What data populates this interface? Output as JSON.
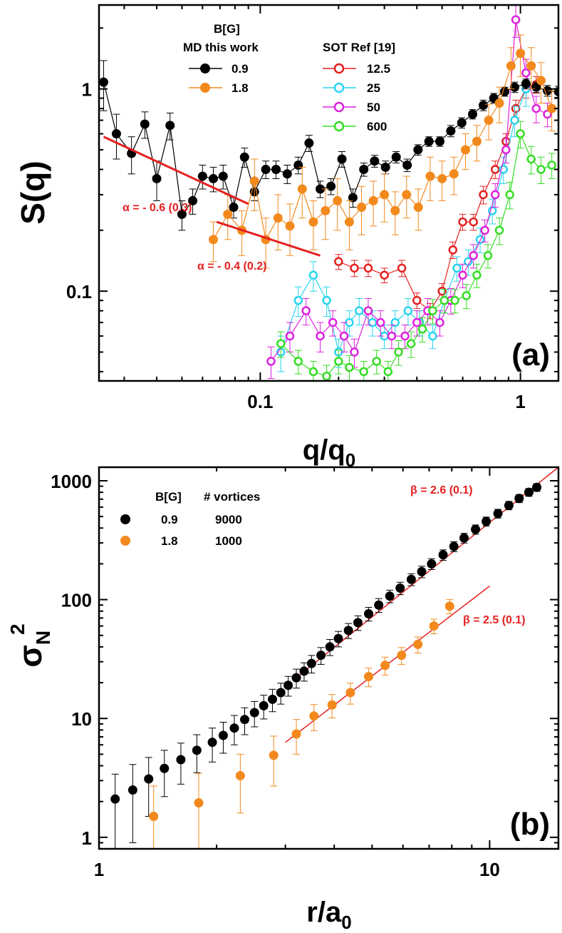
{
  "chart_data": [
    {
      "type": "scatter",
      "panel_label": "(a)",
      "xlabel_main": "q/q",
      "xlabel_sub": "0",
      "ylabel": "S(q)",
      "xscale": "log",
      "yscale": "log",
      "xlim": [
        0.024,
        1.4
      ],
      "ylim": [
        0.036,
        2.6
      ],
      "xticks": [
        {
          "v": 0.1,
          "label": "0.1"
        },
        {
          "v": 1,
          "label": "1"
        }
      ],
      "yticks": [
        {
          "v": 0.1,
          "label": "0.1"
        },
        {
          "v": 1,
          "label": "1"
        }
      ],
      "legend": {
        "title": "B[G]",
        "md_header": "MD this work",
        "sot_header": "SOT Ref [19]"
      },
      "series": [
        {
          "name": "0.9",
          "group": "md",
          "color": "#000000",
          "filled": true,
          "x": [
            0.025,
            0.028,
            0.032,
            0.036,
            0.04,
            0.045,
            0.05,
            0.055,
            0.06,
            0.066,
            0.072,
            0.079,
            0.087,
            0.095,
            0.105,
            0.115,
            0.127,
            0.14,
            0.154,
            0.17,
            0.187,
            0.206,
            0.227,
            0.25,
            0.275,
            0.303,
            0.333,
            0.367,
            0.404,
            0.445,
            0.49,
            0.54,
            0.595,
            0.655,
            0.72,
            0.79,
            0.87,
            0.95,
            1.05,
            1.15,
            1.27,
            1.4
          ],
          "y": [
            1.08,
            0.6,
            0.48,
            0.67,
            0.36,
            0.66,
            0.24,
            0.28,
            0.37,
            0.36,
            0.37,
            0.26,
            0.46,
            0.31,
            0.4,
            0.4,
            0.38,
            0.42,
            0.54,
            0.32,
            0.33,
            0.45,
            0.29,
            0.4,
            0.44,
            0.41,
            0.46,
            0.42,
            0.5,
            0.55,
            0.55,
            0.62,
            0.68,
            0.75,
            0.83,
            0.9,
            0.97,
            1.02,
            1.06,
            1.02,
            0.98,
            0.97
          ],
          "err": [
            0.3,
            0.15,
            0.1,
            0.1,
            0.08,
            0.1,
            0.04,
            0.04,
            0.05,
            0.05,
            0.05,
            0.03,
            0.05,
            0.03,
            0.04,
            0.04,
            0.04,
            0.04,
            0.05,
            0.03,
            0.03,
            0.04,
            0.03,
            0.03,
            0.03,
            0.03,
            0.03,
            0.03,
            0.03,
            0.03,
            0.03,
            0.04,
            0.04,
            0.04,
            0.05,
            0.05,
            0.05,
            0.06,
            0.06,
            0.06,
            0.06,
            0.06
          ]
        },
        {
          "name": "1.8",
          "group": "md",
          "color": "#f2891d",
          "filled": true,
          "x": [
            0.066,
            0.075,
            0.085,
            0.095,
            0.105,
            0.117,
            0.13,
            0.145,
            0.16,
            0.178,
            0.198,
            0.22,
            0.245,
            0.272,
            0.3,
            0.33,
            0.365,
            0.405,
            0.45,
            0.5,
            0.555,
            0.615,
            0.68,
            0.755,
            0.83,
            0.92,
            1.0,
            1.1,
            1.2,
            1.32
          ],
          "y": [
            0.18,
            0.24,
            0.2,
            0.35,
            0.18,
            0.23,
            0.21,
            0.32,
            0.22,
            0.25,
            0.28,
            0.22,
            0.26,
            0.28,
            0.3,
            0.25,
            0.3,
            0.26,
            0.37,
            0.36,
            0.38,
            0.5,
            0.55,
            0.7,
            0.85,
            1.3,
            1.5,
            1.3,
            1.1,
            0.8
          ],
          "err": [
            0.04,
            0.06,
            0.05,
            0.1,
            0.05,
            0.07,
            0.06,
            0.09,
            0.06,
            0.07,
            0.08,
            0.06,
            0.07,
            0.07,
            0.08,
            0.06,
            0.07,
            0.06,
            0.09,
            0.08,
            0.08,
            0.1,
            0.11,
            0.14,
            0.17,
            0.3,
            0.35,
            0.3,
            0.25,
            0.18
          ]
        },
        {
          "name": "12.5",
          "group": "sot",
          "color": "#e52020",
          "filled": false,
          "x": [
            0.2,
            0.23,
            0.26,
            0.3,
            0.35,
            0.4,
            0.45,
            0.5,
            0.55,
            0.6,
            0.66,
            0.72,
            0.8,
            0.88,
            0.96,
            1.05,
            1.15
          ],
          "y": [
            0.14,
            0.13,
            0.13,
            0.12,
            0.13,
            0.09,
            0.08,
            0.1,
            0.16,
            0.22,
            0.22,
            0.3,
            0.4,
            0.55,
            0.8,
            1.0,
            1.05
          ],
          "err": [
            0.012,
            0.012,
            0.012,
            0.01,
            0.012,
            0.008,
            0.007,
            0.009,
            0.015,
            0.02,
            0.02,
            0.03,
            0.04,
            0.05,
            0.08,
            0.1,
            0.1
          ]
        },
        {
          "name": "25",
          "group": "sot",
          "color": "#2ad4ee",
          "filled": false,
          "x": [
            0.12,
            0.14,
            0.16,
            0.18,
            0.2,
            0.22,
            0.24,
            0.27,
            0.3,
            0.33,
            0.37,
            0.41,
            0.46,
            0.51,
            0.57,
            0.63,
            0.7,
            0.78,
            0.86,
            0.95,
            1.05
          ],
          "y": [
            0.05,
            0.09,
            0.12,
            0.09,
            0.05,
            0.07,
            0.08,
            0.07,
            0.06,
            0.07,
            0.08,
            0.07,
            0.06,
            0.09,
            0.13,
            0.14,
            0.18,
            0.25,
            0.4,
            0.7,
            1.0
          ],
          "err": [
            0.01,
            0.015,
            0.02,
            0.015,
            0.008,
            0.01,
            0.012,
            0.01,
            0.008,
            0.01,
            0.012,
            0.01,
            0.008,
            0.012,
            0.018,
            0.02,
            0.025,
            0.035,
            0.06,
            0.12,
            0.18
          ]
        },
        {
          "name": "50",
          "group": "sot",
          "color": "#dd22dd",
          "filled": false,
          "x": [
            0.11,
            0.13,
            0.15,
            0.17,
            0.19,
            0.21,
            0.23,
            0.26,
            0.29,
            0.32,
            0.36,
            0.4,
            0.44,
            0.49,
            0.54,
            0.6,
            0.66,
            0.73,
            0.8,
            0.88,
            0.96,
            1.05,
            1.15,
            1.27
          ],
          "y": [
            0.045,
            0.06,
            0.08,
            0.06,
            0.07,
            0.06,
            0.05,
            0.08,
            0.07,
            0.06,
            0.06,
            0.07,
            0.08,
            0.07,
            0.09,
            0.12,
            0.15,
            0.2,
            0.3,
            0.5,
            2.2,
            1.2,
            0.8,
            0.75
          ],
          "err": [
            0.008,
            0.01,
            0.012,
            0.01,
            0.01,
            0.01,
            0.008,
            0.012,
            0.01,
            0.008,
            0.008,
            0.01,
            0.012,
            0.01,
            0.013,
            0.016,
            0.02,
            0.025,
            0.04,
            0.07,
            0.4,
            0.2,
            0.12,
            0.1
          ]
        },
        {
          "name": "600",
          "group": "sot",
          "color": "#33dd22",
          "filled": false,
          "x": [
            0.12,
            0.14,
            0.16,
            0.18,
            0.2,
            0.22,
            0.25,
            0.28,
            0.31,
            0.34,
            0.38,
            0.42,
            0.46,
            0.51,
            0.56,
            0.62,
            0.68,
            0.75,
            0.83,
            0.91,
            1.0,
            1.1,
            1.2,
            1.32
          ],
          "y": [
            0.055,
            0.045,
            0.04,
            0.038,
            0.045,
            0.042,
            0.04,
            0.045,
            0.04,
            0.05,
            0.055,
            0.065,
            0.08,
            0.09,
            0.09,
            0.095,
            0.12,
            0.15,
            0.2,
            0.3,
            0.6,
            0.45,
            0.4,
            0.42
          ],
          "err": [
            0.008,
            0.006,
            0.005,
            0.005,
            0.006,
            0.006,
            0.005,
            0.006,
            0.005,
            0.007,
            0.008,
            0.009,
            0.011,
            0.012,
            0.012,
            0.013,
            0.016,
            0.02,
            0.03,
            0.045,
            0.09,
            0.07,
            0.06,
            0.06
          ]
        }
      ],
      "fits": [
        {
          "x": [
            0.025,
            0.09
          ],
          "y": [
            0.58,
            0.27
          ],
          "label": "α = - 0.6 (0.3)",
          "color": "#e52020"
        },
        {
          "x": [
            0.068,
            0.17
          ],
          "y": [
            0.22,
            0.15
          ],
          "label": "α = - 0.4 (0.2)",
          "color": "#e52020"
        }
      ]
    },
    {
      "type": "scatter",
      "panel_label": "(b)",
      "xlabel_main": "r/a",
      "xlabel_sub": "0",
      "ylabel_main": "σ",
      "ylabel_sub": "N",
      "ylabel_sup": "2",
      "xscale": "log",
      "yscale": "log",
      "xlim": [
        1,
        15
      ],
      "ylim": [
        0.8,
        1300
      ],
      "xticks": [
        {
          "v": 1,
          "label": "1"
        },
        {
          "v": 10,
          "label": "10"
        }
      ],
      "yticks": [
        {
          "v": 1,
          "label": "1"
        },
        {
          "v": 10,
          "label": "10"
        },
        {
          "v": 100,
          "label": "100"
        },
        {
          "v": 1000,
          "label": "1000"
        }
      ],
      "legend": {
        "col1_header": "B[G]",
        "col2_header": "# vortices",
        "rows": [
          {
            "b": "0.9",
            "n": "9000",
            "color": "#000000"
          },
          {
            "b": "1.8",
            "n": "1000",
            "color": "#f2891d"
          }
        ]
      },
      "series": [
        {
          "name": "0.9",
          "color": "#000000",
          "x": [
            1.1,
            1.22,
            1.34,
            1.47,
            1.62,
            1.78,
            1.95,
            2.08,
            2.22,
            2.36,
            2.5,
            2.64,
            2.78,
            2.92,
            3.05,
            3.2,
            3.35,
            3.5,
            3.7,
            3.9,
            4.1,
            4.35,
            4.6,
            4.9,
            5.2,
            5.55,
            5.9,
            6.3,
            6.7,
            7.1,
            7.6,
            8.1,
            8.6,
            9.2,
            9.8,
            10.5,
            11.2,
            11.9,
            12.6,
            13.2
          ],
          "y": [
            2.1,
            2.5,
            3.1,
            3.8,
            4.5,
            5.4,
            6.3,
            7.2,
            8.3,
            9.8,
            11.2,
            12.8,
            14.5,
            16.5,
            19,
            22,
            25,
            29,
            34,
            40,
            47,
            55,
            64,
            76,
            90,
            107,
            125,
            148,
            172,
            200,
            238,
            280,
            330,
            390,
            455,
            530,
            620,
            710,
            800,
            880
          ],
          "err": [
            1.3,
            1.6,
            1.6,
            1.6,
            1.7,
            1.9,
            2.0,
            2.1,
            2.3,
            2.5,
            2.7,
            2.9,
            3.1,
            3.3,
            3.6,
            4.0,
            4.4,
            4.9,
            5.5,
            6.2,
            7.0,
            8.0,
            9,
            10,
            12,
            13,
            15,
            17,
            19,
            21,
            24,
            27,
            31,
            35,
            40,
            45,
            50,
            55,
            60,
            65
          ]
        },
        {
          "name": "1.8",
          "color": "#f2891d",
          "x": [
            1.38,
            1.8,
            2.3,
            2.8,
            3.2,
            3.55,
            3.95,
            4.4,
            4.9,
            5.4,
            5.95,
            6.55,
            7.2,
            7.9
          ],
          "y": [
            1.5,
            1.95,
            3.3,
            4.9,
            7.4,
            10.5,
            13,
            16.5,
            22.5,
            28,
            34,
            42,
            60,
            88
          ],
          "err": [
            1.2,
            1.5,
            1.7,
            2.2,
            2.4,
            2.6,
            2.9,
            3.3,
            4.0,
            4.8,
            5.5,
            6.5,
            8.5,
            12
          ]
        }
      ],
      "fits": [
        {
          "x": [
            3.2,
            15
          ],
          "y": [
            22,
            1300
          ],
          "label": "β = 2.6 (0.1)",
          "color": "#e52020"
        },
        {
          "x": [
            3.0,
            10
          ],
          "y": [
            6.3,
            130
          ],
          "label": "β = 2.5 (0.1)",
          "color": "#e52020"
        }
      ]
    }
  ]
}
